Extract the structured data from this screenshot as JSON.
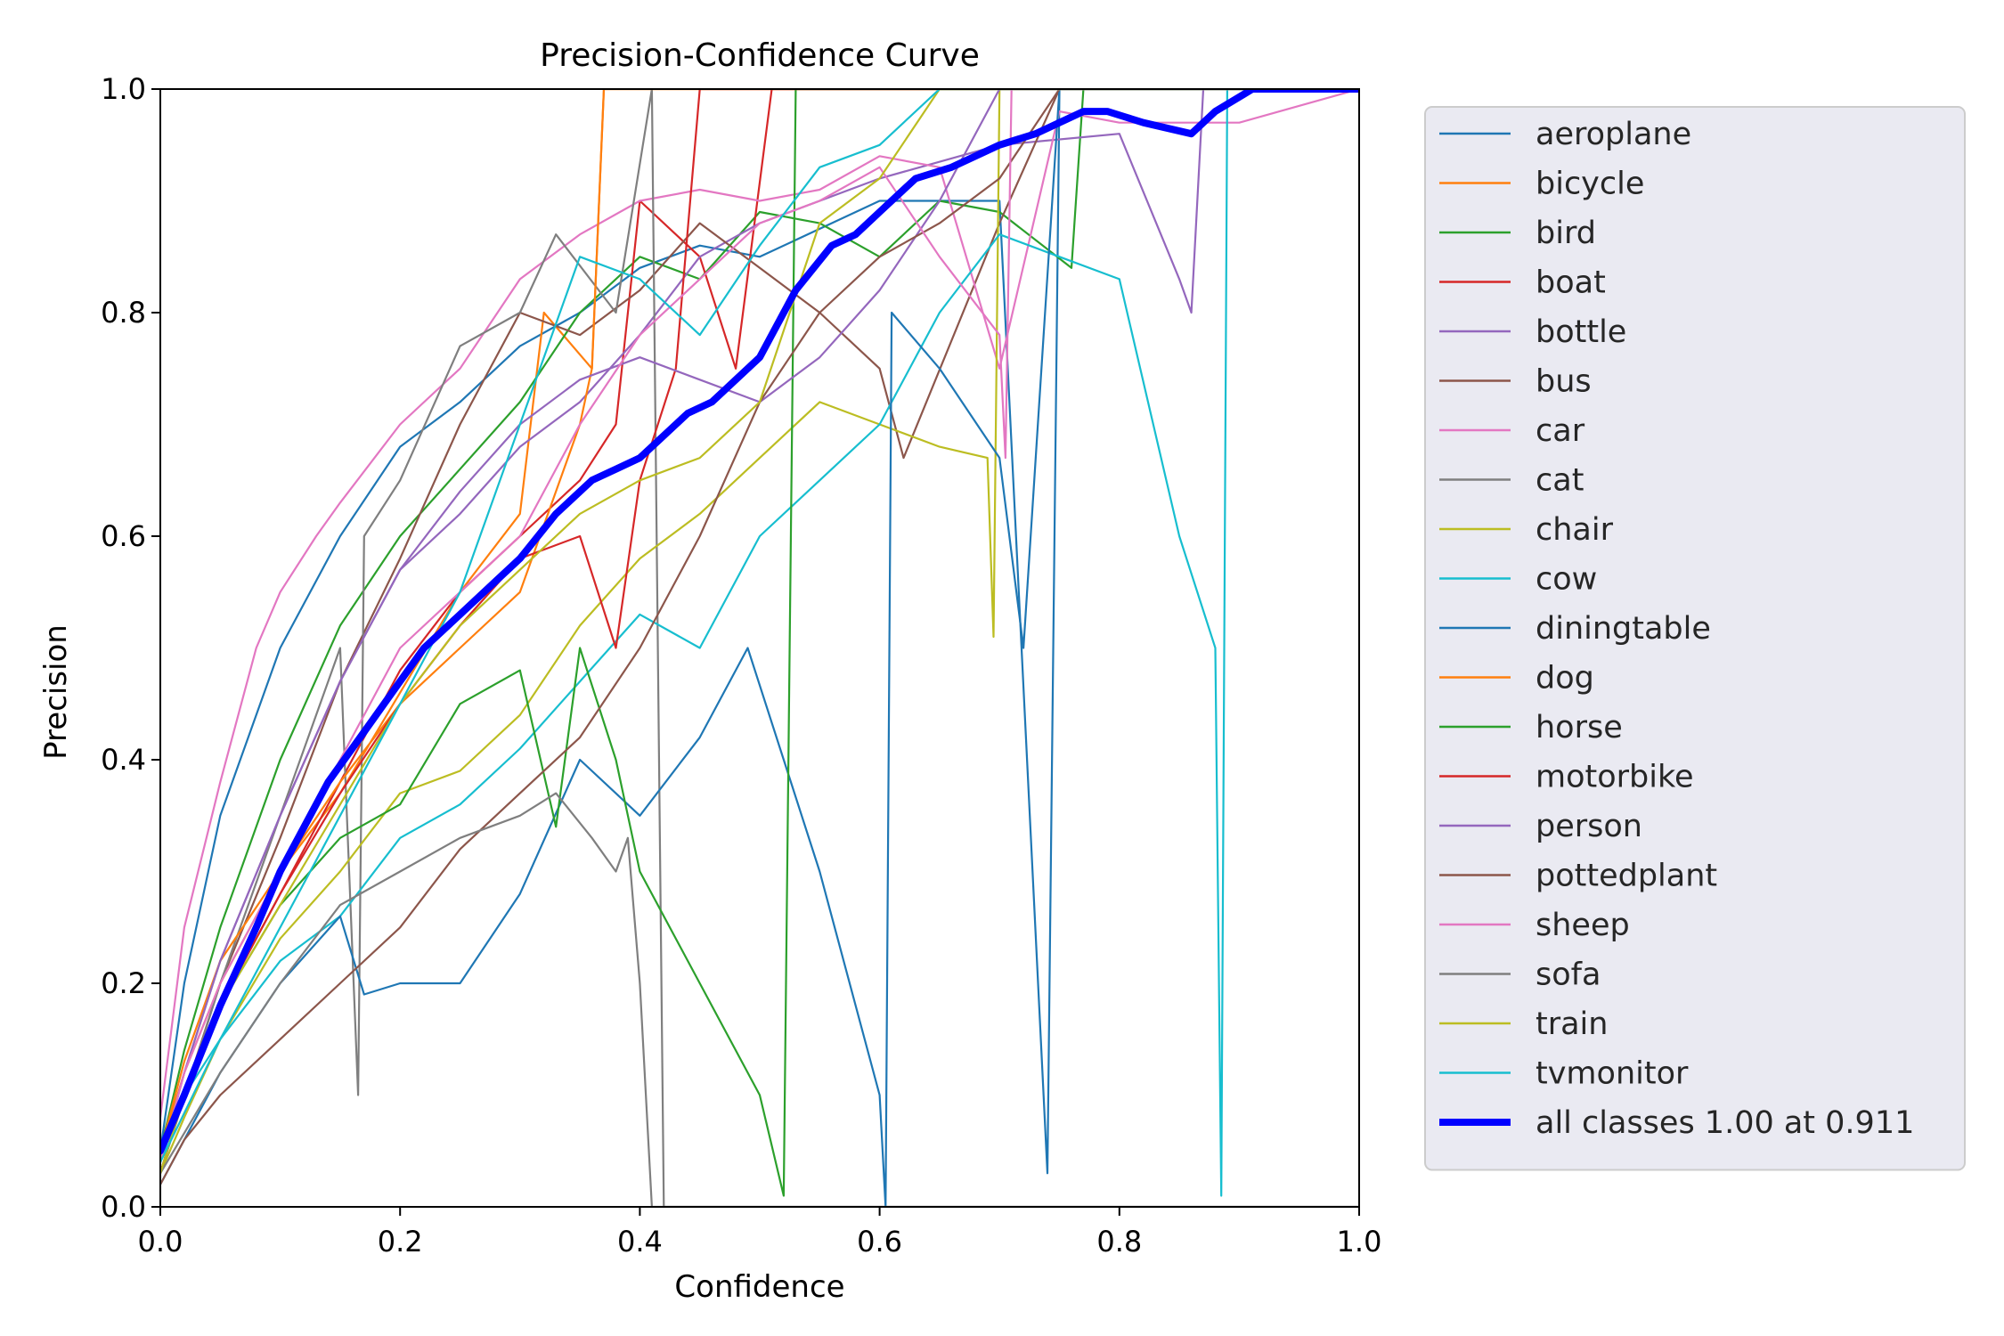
{
  "chart_data": {
    "type": "line",
    "title": "Precision-Confidence Curve",
    "xlabel": "Confidence",
    "ylabel": "Precision",
    "xlim": [
      0,
      1
    ],
    "ylim": [
      0,
      1
    ],
    "xticks": [
      "0.0",
      "0.2",
      "0.4",
      "0.6",
      "0.8",
      "1.0"
    ],
    "yticks": [
      "0.0",
      "0.2",
      "0.4",
      "0.6",
      "0.8",
      "1.0"
    ],
    "grid": false,
    "legend_position": "outside-right",
    "series": [
      {
        "name": "aeroplane",
        "color": "#1f77b4",
        "x": [
          0,
          0.02,
          0.05,
          0.1,
          0.15,
          0.2,
          0.25,
          0.3,
          0.35,
          0.4,
          0.45,
          0.5,
          0.6,
          0.7,
          0.74,
          0.75,
          0.8,
          0.9,
          1.0
        ],
        "y": [
          0.05,
          0.2,
          0.35,
          0.5,
          0.6,
          0.68,
          0.72,
          0.77,
          0.8,
          0.84,
          0.86,
          0.85,
          0.9,
          0.9,
          0.03,
          1.0,
          1.0,
          1.0,
          1.0
        ]
      },
      {
        "name": "bicycle",
        "color": "#ff7f0e",
        "x": [
          0,
          0.02,
          0.05,
          0.1,
          0.15,
          0.2,
          0.25,
          0.3,
          0.32,
          0.36,
          0.37,
          0.4,
          0.5,
          1.0
        ],
        "y": [
          0.05,
          0.12,
          0.2,
          0.3,
          0.37,
          0.46,
          0.55,
          0.62,
          0.8,
          0.75,
          1.0,
          1.0,
          1.0,
          1.0
        ]
      },
      {
        "name": "bird",
        "color": "#2ca02c",
        "x": [
          0,
          0.02,
          0.05,
          0.1,
          0.15,
          0.2,
          0.25,
          0.3,
          0.35,
          0.4,
          0.45,
          0.5,
          0.55,
          0.6,
          0.65,
          0.7,
          0.76,
          0.77,
          0.8,
          1.0
        ],
        "y": [
          0.05,
          0.14,
          0.25,
          0.4,
          0.52,
          0.6,
          0.66,
          0.72,
          0.8,
          0.85,
          0.83,
          0.89,
          0.88,
          0.85,
          0.9,
          0.89,
          0.84,
          1.0,
          1.0,
          1.0
        ]
      },
      {
        "name": "boat",
        "color": "#d62728",
        "x": [
          0,
          0.02,
          0.05,
          0.1,
          0.15,
          0.2,
          0.25,
          0.3,
          0.35,
          0.38,
          0.4,
          0.45,
          0.48,
          0.51,
          0.6,
          1.0
        ],
        "y": [
          0.03,
          0.1,
          0.18,
          0.28,
          0.38,
          0.48,
          0.55,
          0.6,
          0.65,
          0.7,
          0.9,
          0.85,
          0.75,
          1.0,
          1.0,
          1.0
        ]
      },
      {
        "name": "bottle",
        "color": "#9467bd",
        "x": [
          0,
          0.02,
          0.05,
          0.1,
          0.15,
          0.2,
          0.25,
          0.3,
          0.35,
          0.4,
          0.45,
          0.5,
          0.6,
          0.7,
          0.8,
          0.85,
          0.86,
          0.87,
          0.9,
          1.0
        ],
        "y": [
          0.04,
          0.12,
          0.22,
          0.35,
          0.47,
          0.57,
          0.62,
          0.68,
          0.72,
          0.78,
          0.85,
          0.88,
          0.92,
          0.95,
          0.96,
          0.83,
          0.8,
          1.0,
          1.0,
          1.0
        ]
      },
      {
        "name": "bus",
        "color": "#8c564b",
        "x": [
          0,
          0.02,
          0.05,
          0.1,
          0.15,
          0.2,
          0.25,
          0.3,
          0.35,
          0.4,
          0.45,
          0.5,
          0.55,
          0.6,
          0.62,
          0.7,
          0.75,
          1.0
        ],
        "y": [
          0.03,
          0.1,
          0.2,
          0.33,
          0.47,
          0.58,
          0.7,
          0.8,
          0.78,
          0.82,
          0.88,
          0.84,
          0.8,
          0.75,
          0.67,
          0.88,
          1.0,
          1.0
        ]
      },
      {
        "name": "car",
        "color": "#e377c2",
        "x": [
          0,
          0.02,
          0.05,
          0.08,
          0.1,
          0.13,
          0.15,
          0.2,
          0.25,
          0.3,
          0.35,
          0.4,
          0.45,
          0.5,
          0.55,
          0.6,
          0.65,
          0.7,
          0.75,
          0.8,
          0.9,
          1.0
        ],
        "y": [
          0.08,
          0.25,
          0.38,
          0.5,
          0.55,
          0.6,
          0.63,
          0.7,
          0.75,
          0.83,
          0.87,
          0.9,
          0.91,
          0.9,
          0.91,
          0.94,
          0.93,
          0.75,
          0.98,
          0.97,
          0.97,
          1.0
        ]
      },
      {
        "name": "cat",
        "color": "#7f7f7f",
        "x": [
          0,
          0.05,
          0.1,
          0.15,
          0.165,
          0.17,
          0.2,
          0.25,
          0.3,
          0.33,
          0.38,
          0.41,
          0.42,
          0.5,
          0.55,
          1.0
        ],
        "y": [
          0.03,
          0.2,
          0.35,
          0.5,
          0.1,
          0.6,
          0.65,
          0.77,
          0.8,
          0.87,
          0.8,
          1.0,
          0.0,
          0.0,
          0.0,
          0.0
        ]
      },
      {
        "name": "chair",
        "color": "#bcbd22",
        "x": [
          0,
          0.02,
          0.05,
          0.1,
          0.15,
          0.2,
          0.25,
          0.3,
          0.35,
          0.4,
          0.45,
          0.5,
          0.55,
          0.6,
          0.65,
          0.69,
          0.695,
          0.7,
          0.75,
          1.0
        ],
        "y": [
          0.03,
          0.08,
          0.15,
          0.24,
          0.3,
          0.37,
          0.39,
          0.44,
          0.52,
          0.58,
          0.62,
          0.67,
          0.72,
          0.7,
          0.68,
          0.67,
          0.51,
          1.0,
          1.0,
          1.0
        ]
      },
      {
        "name": "cow",
        "color": "#17becf",
        "x": [
          0,
          0.02,
          0.05,
          0.1,
          0.15,
          0.2,
          0.25,
          0.3,
          0.35,
          0.4,
          0.45,
          0.5,
          0.55,
          0.6,
          0.65,
          0.7,
          0.75,
          0.8,
          0.85,
          0.88,
          0.885,
          0.89,
          1.0
        ],
        "y": [
          0.04,
          0.1,
          0.15,
          0.22,
          0.26,
          0.33,
          0.36,
          0.41,
          0.47,
          0.53,
          0.5,
          0.6,
          0.65,
          0.7,
          0.8,
          0.87,
          0.85,
          0.83,
          0.6,
          0.5,
          0.01,
          1.0,
          1.0
        ]
      },
      {
        "name": "diningtable",
        "color": "#1f77b4",
        "x": [
          0,
          0.05,
          0.1,
          0.15,
          0.17,
          0.2,
          0.25,
          0.3,
          0.35,
          0.4,
          0.45,
          0.49,
          0.55,
          0.6,
          0.605,
          0.61,
          0.65,
          0.7,
          0.72,
          0.75,
          1.0
        ],
        "y": [
          0.02,
          0.12,
          0.2,
          0.26,
          0.19,
          0.2,
          0.2,
          0.28,
          0.4,
          0.35,
          0.42,
          0.5,
          0.3,
          0.1,
          0.0,
          0.8,
          0.75,
          0.67,
          0.5,
          1.0,
          1.0
        ]
      },
      {
        "name": "dog",
        "color": "#ff7f0e",
        "x": [
          0,
          0.02,
          0.05,
          0.1,
          0.15,
          0.2,
          0.25,
          0.3,
          0.35,
          0.36,
          0.37,
          0.5,
          1.0
        ],
        "y": [
          0.05,
          0.13,
          0.22,
          0.3,
          0.38,
          0.45,
          0.5,
          0.55,
          0.7,
          0.75,
          1.0,
          1.0,
          1.0
        ]
      },
      {
        "name": "horse",
        "color": "#2ca02c",
        "x": [
          0,
          0.02,
          0.05,
          0.1,
          0.15,
          0.2,
          0.25,
          0.3,
          0.33,
          0.35,
          0.38,
          0.4,
          0.45,
          0.5,
          0.52,
          0.53,
          0.535,
          0.6,
          1.0
        ],
        "y": [
          0.03,
          0.1,
          0.18,
          0.27,
          0.33,
          0.36,
          0.45,
          0.48,
          0.34,
          0.5,
          0.4,
          0.3,
          0.2,
          0.1,
          0.01,
          1.0,
          1.0,
          1.0,
          1.0
        ]
      },
      {
        "name": "motorbike",
        "color": "#d62728",
        "x": [
          0,
          0.02,
          0.05,
          0.1,
          0.15,
          0.2,
          0.25,
          0.3,
          0.35,
          0.38,
          0.4,
          0.43,
          0.45,
          0.5,
          1.0
        ],
        "y": [
          0.03,
          0.1,
          0.18,
          0.28,
          0.37,
          0.45,
          0.52,
          0.58,
          0.6,
          0.5,
          0.65,
          0.75,
          1.0,
          1.0,
          1.0
        ]
      },
      {
        "name": "person",
        "color": "#9467bd",
        "x": [
          0,
          0.02,
          0.05,
          0.1,
          0.15,
          0.2,
          0.25,
          0.3,
          0.35,
          0.4,
          0.45,
          0.5,
          0.55,
          0.6,
          0.65,
          0.7,
          0.8,
          1.0
        ],
        "y": [
          0.04,
          0.12,
          0.22,
          0.35,
          0.47,
          0.57,
          0.64,
          0.7,
          0.74,
          0.76,
          0.74,
          0.72,
          0.76,
          0.82,
          0.9,
          1.0,
          1.0,
          1.0
        ]
      },
      {
        "name": "pottedplant",
        "color": "#8c564b",
        "x": [
          0,
          0.02,
          0.05,
          0.1,
          0.15,
          0.2,
          0.25,
          0.3,
          0.35,
          0.4,
          0.45,
          0.5,
          0.55,
          0.6,
          0.65,
          0.7,
          0.75,
          1.0
        ],
        "y": [
          0.02,
          0.06,
          0.1,
          0.15,
          0.2,
          0.25,
          0.32,
          0.37,
          0.42,
          0.5,
          0.6,
          0.72,
          0.8,
          0.85,
          0.88,
          0.92,
          1.0,
          1.0
        ]
      },
      {
        "name": "sheep",
        "color": "#e377c2",
        "x": [
          0,
          0.02,
          0.05,
          0.1,
          0.15,
          0.2,
          0.25,
          0.3,
          0.35,
          0.4,
          0.45,
          0.5,
          0.55,
          0.6,
          0.65,
          0.7,
          0.705,
          0.71,
          0.75,
          1.0
        ],
        "y": [
          0.04,
          0.12,
          0.2,
          0.3,
          0.4,
          0.5,
          0.55,
          0.6,
          0.7,
          0.78,
          0.83,
          0.88,
          0.9,
          0.93,
          0.85,
          0.78,
          0.67,
          1.0,
          1.0,
          1.0
        ]
      },
      {
        "name": "sofa",
        "color": "#7f7f7f",
        "x": [
          0,
          0.05,
          0.1,
          0.15,
          0.2,
          0.25,
          0.3,
          0.33,
          0.36,
          0.38,
          0.39,
          0.4,
          0.41,
          0.45,
          0.5,
          0.55,
          1.0
        ],
        "y": [
          0.03,
          0.12,
          0.2,
          0.27,
          0.3,
          0.33,
          0.35,
          0.37,
          0.33,
          0.3,
          0.33,
          0.2,
          0.0,
          0.0,
          0.0,
          0.0,
          0.0
        ]
      },
      {
        "name": "train",
        "color": "#bcbd22",
        "x": [
          0,
          0.02,
          0.05,
          0.1,
          0.15,
          0.2,
          0.25,
          0.3,
          0.35,
          0.4,
          0.45,
          0.5,
          0.55,
          0.6,
          0.65,
          0.7,
          0.75,
          1.0
        ],
        "y": [
          0.03,
          0.1,
          0.18,
          0.27,
          0.36,
          0.45,
          0.52,
          0.57,
          0.62,
          0.65,
          0.67,
          0.72,
          0.88,
          0.92,
          1.0,
          1.0,
          1.0,
          1.0
        ]
      },
      {
        "name": "tvmonitor",
        "color": "#17becf",
        "x": [
          0,
          0.05,
          0.1,
          0.15,
          0.2,
          0.25,
          0.3,
          0.35,
          0.4,
          0.45,
          0.5,
          0.55,
          0.6,
          0.65,
          0.7,
          0.75,
          1.0
        ],
        "y": [
          0.04,
          0.15,
          0.25,
          0.35,
          0.45,
          0.55,
          0.7,
          0.85,
          0.83,
          0.78,
          0.86,
          0.93,
          0.95,
          1.0,
          1.0,
          1.0,
          1.0
        ]
      },
      {
        "name": "all classes 1.00 at 0.911",
        "color": "#0000ff",
        "bold": true,
        "x": [
          0,
          0.02,
          0.05,
          0.08,
          0.1,
          0.12,
          0.14,
          0.16,
          0.18,
          0.2,
          0.22,
          0.25,
          0.28,
          0.3,
          0.33,
          0.36,
          0.38,
          0.4,
          0.42,
          0.44,
          0.46,
          0.48,
          0.5,
          0.53,
          0.56,
          0.58,
          0.6,
          0.63,
          0.66,
          0.7,
          0.73,
          0.77,
          0.79,
          0.82,
          0.86,
          0.88,
          0.911,
          0.95,
          1.0
        ],
        "y": [
          0.05,
          0.1,
          0.18,
          0.25,
          0.3,
          0.34,
          0.38,
          0.41,
          0.44,
          0.47,
          0.5,
          0.53,
          0.56,
          0.58,
          0.62,
          0.65,
          0.66,
          0.67,
          0.69,
          0.71,
          0.72,
          0.74,
          0.76,
          0.82,
          0.86,
          0.87,
          0.89,
          0.92,
          0.93,
          0.95,
          0.96,
          0.98,
          0.98,
          0.97,
          0.96,
          0.98,
          1.0,
          1.0,
          1.0
        ]
      }
    ]
  }
}
